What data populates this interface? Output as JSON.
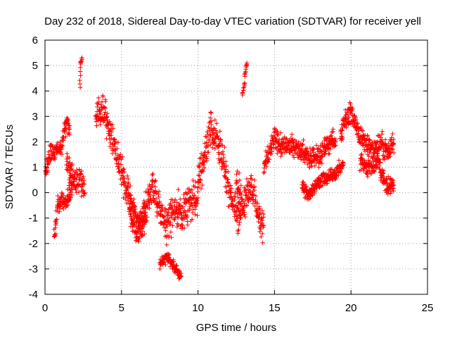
{
  "chart_data": {
    "type": "scatter",
    "title": "Day 232 of 2018, Sidereal Day-to-day VTEC variation (SDTVAR) for receiver yell",
    "xlabel": "GPS time / hours",
    "ylabel": "SDTVAR / TECUs",
    "xlim": [
      0,
      25
    ],
    "ylim": [
      -4,
      6
    ],
    "xticks": [
      "0",
      "5",
      "10",
      "15",
      "20",
      "25"
    ],
    "yticks": [
      "-4",
      "-3",
      "-2",
      "-1",
      "0",
      "1",
      "2",
      "3",
      "4",
      "5",
      "6"
    ],
    "grid": true,
    "marker": "+",
    "color": "#ff0000",
    "series": [
      {
        "name": "SDTVAR",
        "segments": [
          {
            "x": [
              0.0,
              0.2,
              0.4,
              0.6,
              0.8,
              1.0,
              1.2,
              1.4,
              1.6
            ],
            "y": [
              0.7,
              1.3,
              1.7,
              1.5,
              1.9,
              1.6,
              2.2,
              2.7,
              2.5
            ],
            "spread": 0.5
          },
          {
            "x": [
              0.6,
              0.8,
              1.0,
              1.4,
              1.8
            ],
            "y": [
              -1.8,
              -0.5,
              -0.4,
              -0.3,
              0.3
            ],
            "spread": 0.6
          },
          {
            "x": [
              1.4,
              1.7,
              2.0,
              2.3,
              2.6
            ],
            "y": [
              1.1,
              0.8,
              0.4,
              0.6,
              0.0
            ],
            "spread": 0.8
          },
          {
            "x": [
              2.3,
              2.3,
              2.4
            ],
            "y": [
              4.1,
              5.1,
              5.3
            ],
            "spread": 0.1
          },
          {
            "x": [
              3.3,
              3.6,
              3.9,
              4.2,
              4.5,
              4.8,
              5.1,
              5.4,
              5.7,
              6.0,
              6.3,
              6.6
            ],
            "y": [
              2.8,
              3.2,
              3.1,
              2.4,
              2.0,
              1.2,
              0.6,
              0.1,
              -0.6,
              -1.1,
              -1.3,
              -0.6
            ],
            "spread": 0.9
          },
          {
            "x": [
              5.5,
              6.0,
              6.5,
              7.0,
              7.5,
              8.0,
              8.5,
              9.0,
              9.5,
              10.0
            ],
            "y": [
              -0.6,
              -1.6,
              -1.0,
              0.3,
              -0.6,
              -1.3,
              -0.6,
              -0.8,
              -0.4,
              -0.2
            ],
            "spread": 1.0
          },
          {
            "x": [
              7.5,
              8.0,
              8.5,
              8.9
            ],
            "y": [
              -2.8,
              -2.5,
              -3.0,
              -3.3
            ],
            "spread": 0.3
          },
          {
            "x": [
              10.0,
              10.4,
              10.8,
              11.2,
              11.6,
              12.0,
              12.4,
              12.8
            ],
            "y": [
              0.6,
              1.3,
              2.6,
              2.2,
              1.3,
              0.2,
              -0.6,
              -1.0
            ],
            "spread": 1.0
          },
          {
            "x": [
              12.5,
              13.0,
              13.5,
              14.0,
              14.3
            ],
            "y": [
              0.4,
              -0.5,
              0.2,
              -0.9,
              -1.3
            ],
            "spread": 0.9
          },
          {
            "x": [
              12.9,
              13.0,
              13.1,
              13.2
            ],
            "y": [
              3.8,
              4.2,
              4.8,
              5.1
            ],
            "spread": 0.2
          },
          {
            "x": [
              14.3,
              14.7,
              15.0,
              15.5,
              16.0,
              16.5,
              17.0,
              17.5,
              18.0,
              18.5,
              19.0
            ],
            "y": [
              1.0,
              1.6,
              2.1,
              1.8,
              1.9,
              1.8,
              1.5,
              1.4,
              1.5,
              1.9,
              2.1
            ],
            "spread": 0.6
          },
          {
            "x": [
              16.8,
              17.2,
              17.6,
              18.0,
              18.5,
              19.0,
              19.5
            ],
            "y": [
              0.3,
              -0.1,
              0.2,
              0.5,
              0.6,
              0.8,
              1.1
            ],
            "spread": 0.4
          },
          {
            "x": [
              19.3,
              19.6,
              20.0,
              20.3,
              20.6,
              21.0,
              21.5,
              22.0,
              22.4,
              22.8
            ],
            "y": [
              2.2,
              2.8,
              3.2,
              2.7,
              2.2,
              1.9,
              1.7,
              1.9,
              1.6,
              1.9
            ],
            "spread": 0.6
          },
          {
            "x": [
              20.6,
              21.0,
              21.4,
              21.8,
              22.2,
              22.6,
              22.8
            ],
            "y": [
              1.2,
              1.0,
              1.0,
              1.2,
              0.4,
              0.2,
              0.3
            ],
            "spread": 0.5
          }
        ]
      }
    ]
  }
}
